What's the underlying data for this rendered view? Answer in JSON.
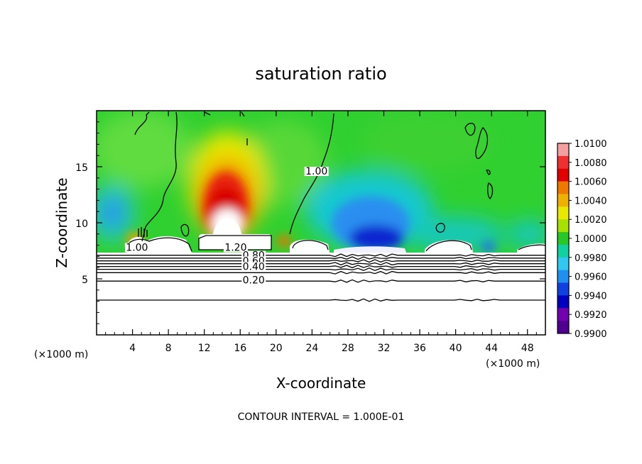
{
  "chart_data": {
    "type": "heatmap",
    "title": "saturation ratio",
    "xlabel": "X-coordinate",
    "ylabel": "Z-coordinate",
    "x_unit_label": "(×1000 m)",
    "y_unit_label": "(×1000 m)",
    "xlim": [
      0,
      50
    ],
    "ylim": [
      0,
      20
    ],
    "x_ticks": [
      4,
      8,
      12,
      16,
      20,
      24,
      28,
      32,
      36,
      40,
      44,
      48
    ],
    "y_ticks": [
      5,
      10,
      15
    ],
    "footer": "CONTOUR INTERVAL = 1.000E-01",
    "colorbar": {
      "labels": [
        "1.0100",
        "1.0080",
        "1.0060",
        "1.0040",
        "1.0020",
        "1.0000",
        "0.9980",
        "0.9960",
        "0.9940",
        "0.9920",
        "0.9900"
      ],
      "colors": [
        "#f4a0a0",
        "#f03030",
        "#e00000",
        "#f07800",
        "#f0b000",
        "#e8e800",
        "#a8e000",
        "#28c828",
        "#10d0a0",
        "#30c8f0",
        "#2090f0",
        "#1040e0",
        "#0000c0",
        "#7000b0",
        "#500090"
      ]
    },
    "contours": [
      {
        "label": "1.00",
        "x": 4.5,
        "y": 7.5
      },
      {
        "label": "1.20",
        "x": 15.5,
        "y": 7.5
      },
      {
        "label": "1.00",
        "x": 24.5,
        "y": 14.3
      },
      {
        "label": "0.80",
        "x": 17.5,
        "y": 6.8
      },
      {
        "label": "0.60",
        "x": 17.5,
        "y": 6.3
      },
      {
        "label": "0.40",
        "x": 17.5,
        "y": 5.8
      },
      {
        "label": "0.20",
        "x": 17.5,
        "y": 4.6
      }
    ],
    "horizontal_contour_z": [
      7.1,
      6.85,
      6.6,
      6.35,
      6.1,
      5.85,
      5.55,
      4.8,
      3.1
    ]
  }
}
